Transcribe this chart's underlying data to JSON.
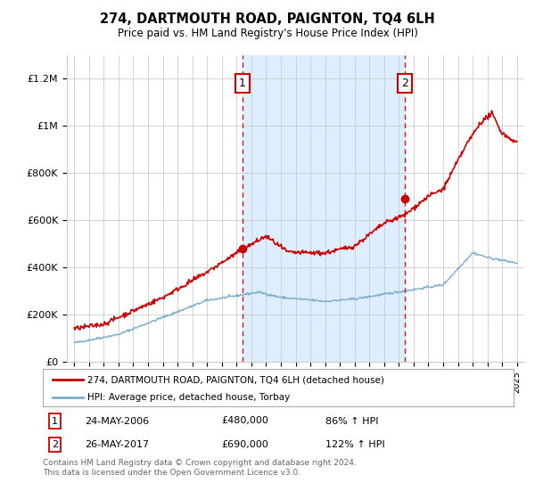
{
  "title": "274, DARTMOUTH ROAD, PAIGNTON, TQ4 6LH",
  "subtitle": "Price paid vs. HM Land Registry's House Price Index (HPI)",
  "footer": "Contains HM Land Registry data © Crown copyright and database right 2024.\nThis data is licensed under the Open Government Licence v3.0.",
  "legend_line1": "274, DARTMOUTH ROAD, PAIGNTON, TQ4 6LH (detached house)",
  "legend_line2": "HPI: Average price, detached house, Torbay",
  "transaction1_date": "24-MAY-2006",
  "transaction1_price": "£480,000",
  "transaction1_hpi": "86% ↑ HPI",
  "transaction2_date": "26-MAY-2017",
  "transaction2_price": "£690,000",
  "transaction2_hpi": "122% ↑ HPI",
  "transaction1_year": 2006.4,
  "transaction1_value": 480000,
  "transaction2_year": 2017.4,
  "transaction2_value": 690000,
  "red_color": "#cc0000",
  "blue_color": "#7aadcc",
  "shade_color": "#ddeeff",
  "vline_color": "#cc0000",
  "background_color": "#ffffff",
  "grid_color": "#cccccc",
  "ylim": [
    0,
    1300000
  ],
  "xlim": [
    1994.5,
    2025.5
  ]
}
